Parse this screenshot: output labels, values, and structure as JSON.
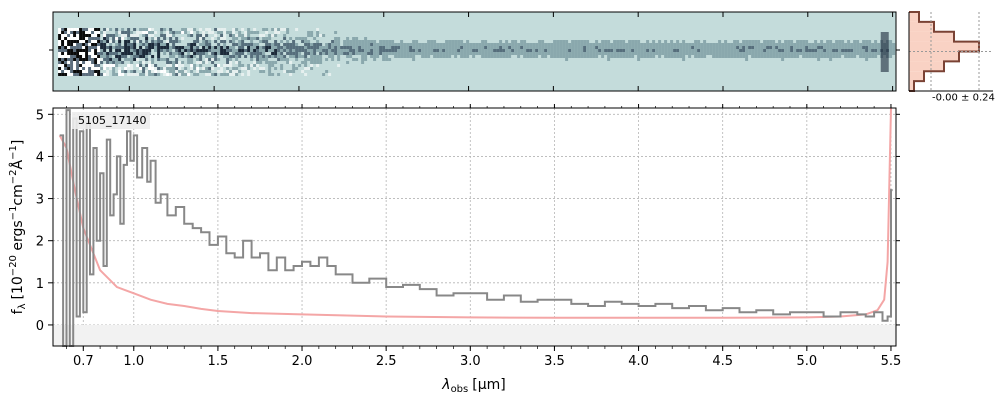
{
  "figure": {
    "object_id": "5105_17140",
    "colors": {
      "spectrum": "#888888",
      "error": "#f4a6a6",
      "model": "#e86f6f",
      "twod_bg": "#c4dcdb",
      "hist_fill": "#f9d2c4",
      "hist_line": "#7a4234",
      "grid": "#b0b0b0"
    }
  },
  "chart_data": [
    {
      "type": "heatmap",
      "role": "2d-spectrum",
      "x_range": [
        0.55,
        5.52
      ],
      "title": "",
      "xlabel": "",
      "ylabel": "",
      "grid": false
    },
    {
      "type": "line",
      "role": "1d-spectrum",
      "title": "",
      "xlabel": "λ_obs [μm]",
      "xlabel_parts": {
        "lambda": "λ",
        "sub": "obs",
        "unit": "[μm]"
      },
      "ylabel": "f_λ [10^-20 ergs^-1 cm^-2 Å^-1]",
      "ylabel_parts": {
        "f": "f",
        "sub": "λ",
        "prefix": "[10",
        "exp1": "−20",
        "mid1": " ergs",
        "exp2": "−1",
        "mid2": "cm",
        "exp3": "−2",
        "mid3": "Å",
        "exp4": "−1",
        "suffix": "]"
      },
      "xlim": [
        0.52,
        5.53
      ],
      "ylim": [
        -0.5,
        5.15
      ],
      "x_ticks": [
        0.7,
        1.0,
        1.5,
        2.0,
        2.5,
        3.0,
        3.5,
        4.0,
        4.5,
        5.0,
        5.5
      ],
      "x_tick_labels": [
        "0.7",
        "1.0",
        "1.5",
        "2.0",
        "2.5",
        "3.0",
        "3.5",
        "4.0",
        "4.5",
        "5.0",
        "5.5"
      ],
      "y_ticks": [
        0,
        1,
        2,
        3,
        4,
        5
      ],
      "y_tick_labels": [
        "0",
        "1",
        "2",
        "3",
        "4",
        "5"
      ],
      "grid": true,
      "series": [
        {
          "role": "flux",
          "style": "step",
          "x": [
            0.56,
            0.58,
            0.6,
            0.62,
            0.64,
            0.66,
            0.68,
            0.7,
            0.72,
            0.74,
            0.76,
            0.78,
            0.8,
            0.82,
            0.84,
            0.86,
            0.88,
            0.9,
            0.92,
            0.94,
            0.96,
            0.98,
            1.0,
            1.02,
            1.05,
            1.08,
            1.1,
            1.13,
            1.16,
            1.2,
            1.25,
            1.3,
            1.35,
            1.4,
            1.45,
            1.5,
            1.55,
            1.6,
            1.65,
            1.7,
            1.75,
            1.8,
            1.85,
            1.9,
            1.95,
            2.0,
            2.05,
            2.1,
            2.15,
            2.2,
            2.3,
            2.4,
            2.5,
            2.6,
            2.7,
            2.8,
            2.9,
            3.0,
            3.1,
            3.2,
            3.3,
            3.4,
            3.5,
            3.6,
            3.7,
            3.8,
            3.9,
            4.0,
            4.1,
            4.2,
            4.3,
            4.4,
            4.5,
            4.6,
            4.7,
            4.8,
            4.9,
            5.0,
            5.1,
            5.2,
            5.3,
            5.35,
            5.4,
            5.45,
            5.48,
            5.5,
            5.51
          ],
          "y": [
            4.5,
            -0.6,
            5.1,
            -0.6,
            4.9,
            0.2,
            4.6,
            0.3,
            4.8,
            1.2,
            4.2,
            2.0,
            3.6,
            1.4,
            4.4,
            2.6,
            3.1,
            4.0,
            2.4,
            3.8,
            4.6,
            3.9,
            4.5,
            3.5,
            4.2,
            3.4,
            3.9,
            2.9,
            3.1,
            2.6,
            2.8,
            2.4,
            2.3,
            2.2,
            1.9,
            2.1,
            1.7,
            1.6,
            2.0,
            1.6,
            1.7,
            1.3,
            1.6,
            1.3,
            1.4,
            1.5,
            1.4,
            1.6,
            1.4,
            1.2,
            1.0,
            1.1,
            0.9,
            0.95,
            0.85,
            0.7,
            0.75,
            0.75,
            0.6,
            0.7,
            0.55,
            0.6,
            0.6,
            0.5,
            0.45,
            0.55,
            0.5,
            0.45,
            0.5,
            0.4,
            0.45,
            0.35,
            0.4,
            0.3,
            0.35,
            0.25,
            0.3,
            0.3,
            0.2,
            0.3,
            0.25,
            0.2,
            0.3,
            0.1,
            0.2,
            3.2,
            3.2
          ]
        },
        {
          "role": "error",
          "style": "line",
          "x": [
            0.56,
            0.6,
            0.65,
            0.7,
            0.75,
            0.8,
            0.85,
            0.9,
            1.0,
            1.1,
            1.2,
            1.3,
            1.4,
            1.5,
            1.7,
            2.0,
            2.5,
            3.0,
            3.5,
            4.0,
            4.5,
            5.0,
            5.2,
            5.35,
            5.42,
            5.46,
            5.48,
            5.5
          ],
          "y": [
            4.5,
            4.2,
            3.2,
            2.3,
            1.8,
            1.3,
            1.1,
            0.9,
            0.75,
            0.6,
            0.5,
            0.45,
            0.38,
            0.33,
            0.28,
            0.25,
            0.2,
            0.18,
            0.17,
            0.17,
            0.17,
            0.18,
            0.2,
            0.25,
            0.35,
            0.6,
            1.5,
            5.2
          ]
        }
      ]
    },
    {
      "type": "bar",
      "role": "histogram",
      "title": "",
      "annotation": "-0.00 ± 0.24",
      "orientation": "horizontal",
      "grid": false,
      "bins": [
        -0.8,
        -0.6,
        -0.4,
        -0.2,
        0.0,
        0.2,
        0.4,
        0.6,
        0.8
      ],
      "counts": [
        2,
        6,
        14,
        20,
        28,
        18,
        10,
        4
      ]
    }
  ]
}
